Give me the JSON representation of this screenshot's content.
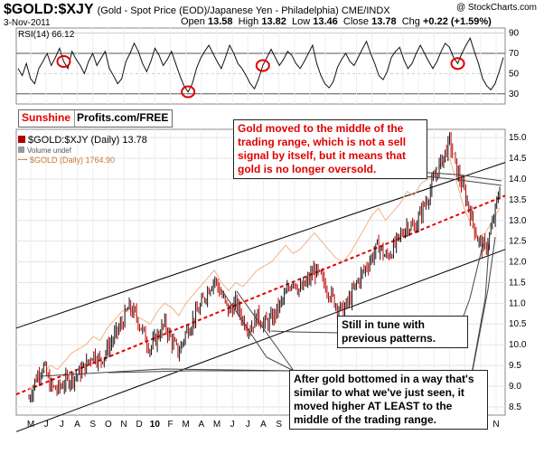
{
  "header": {
    "symbol": "$GOLD:$XJY",
    "subtitle": "(Gold - Spot Price (EOD)/Japanese Yen - Philadelphia) CME/INDX",
    "date": "3-Nov-2011",
    "copyright": "@ StockCharts.com",
    "ohlc": {
      "open_label": "Open",
      "open": "13.58",
      "high_label": "High",
      "high": "13.82",
      "low_label": "Low",
      "low": "13.46",
      "close_label": "Close",
      "close": "13.78",
      "chg_label": "Chg",
      "chg": "+0.22 (+1.59%)"
    }
  },
  "logo": {
    "part1": "Sunshine",
    "part2": "Profits.com/FREE"
  },
  "legend": {
    "price": "$GOLD:$XJY (Daily) 13.78",
    "volume": "Volume undef",
    "gold": "$GOLD (Daily) 1764.90"
  },
  "annotations": {
    "red": "Gold moved to the middle of the trading range, which is not a sell signal by itself, but it means that gold is no longer oversold.",
    "black1": "Still in tune with previous patterns.",
    "black2": "After gold bottomed in a way that's similar to what we've just seen, it moved higher AT LEAST to the middle of the trading range."
  },
  "chart_data": [
    {
      "type": "line",
      "title": "RSI(14) 66.12",
      "ylim": [
        20,
        95
      ],
      "y_ticks": [
        30,
        50,
        70,
        90
      ],
      "series": [
        {
          "name": "RSI(14)",
          "values": [
            55,
            48,
            60,
            45,
            40,
            55,
            62,
            70,
            58,
            66,
            75,
            62,
            55,
            72,
            64,
            58,
            50,
            62,
            70,
            58,
            65,
            72,
            55,
            48,
            40,
            45,
            62,
            70,
            80,
            72,
            60,
            52,
            62,
            75,
            68,
            58,
            64,
            72,
            60,
            48,
            38,
            32,
            40,
            55,
            65,
            72,
            78,
            70,
            62,
            55,
            66,
            78,
            70,
            60,
            55,
            48,
            40,
            35,
            45,
            58,
            66,
            74,
            66,
            58,
            64,
            72,
            68,
            60,
            55,
            62,
            70,
            78,
            60,
            48,
            40,
            36,
            42,
            56,
            64,
            70,
            62,
            58,
            66,
            74,
            82,
            70,
            60,
            48,
            44,
            52,
            66,
            72,
            76,
            64,
            55,
            60,
            70,
            78,
            70,
            62,
            55,
            62,
            72,
            80,
            76,
            66,
            60,
            70,
            78,
            85,
            72,
            60,
            45,
            38,
            34,
            40,
            52,
            66
          ]
        }
      ],
      "highlight_circles_at_index": [
        11,
        41,
        59,
        106
      ]
    },
    {
      "type": "line",
      "title": "$GOLD:$XJY (Daily) 13.78",
      "x_ticks": [
        "M",
        "J",
        "J",
        "A",
        "S",
        "O",
        "N",
        "D",
        "10",
        "F",
        "M",
        "A",
        "M",
        "J",
        "J",
        "A",
        "S",
        "O",
        "N",
        "D",
        "11",
        "F",
        "M",
        "A",
        "M",
        "J",
        "J",
        "A",
        "S",
        "O",
        "N"
      ],
      "ylim": [
        8.3,
        15.2
      ],
      "y_ticks": [
        8.5,
        9.0,
        9.5,
        10.0,
        10.5,
        11.0,
        11.5,
        12.0,
        12.5,
        13.0,
        13.5,
        14.0,
        14.5,
        15.0
      ],
      "series": [
        {
          "name": "$GOLD:$XJY",
          "values": [
            8.7,
            9.2,
            9.5,
            9.0,
            8.9,
            9.1,
            9.2,
            9.3,
            9.5,
            9.8,
            9.6,
            9.9,
            10.2,
            10.5,
            10.9,
            10.7,
            10.3,
            9.9,
            10.2,
            10.5,
            10.1,
            9.8,
            10.3,
            10.6,
            10.9,
            11.3,
            11.6,
            11.2,
            10.8,
            11.0,
            10.6,
            10.4,
            10.7,
            10.5,
            10.6,
            10.9,
            11.2,
            11.6,
            11.3,
            11.5,
            11.8,
            11.6,
            11.3,
            11.0,
            10.8,
            11.1,
            11.5,
            11.8,
            12.1,
            12.4,
            12.1,
            12.3,
            12.6,
            12.9,
            12.8,
            13.2,
            13.6,
            14.1,
            14.5,
            14.9,
            14.2,
            13.7,
            13.1,
            12.5,
            12.3,
            12.9,
            13.78
          ]
        },
        {
          "name": "$GOLD",
          "values": [
            8.9,
            9.1,
            9.3,
            9.5,
            9.4,
            9.6,
            9.8,
            9.9,
            10.0,
            10.2,
            10.1,
            10.4,
            10.6,
            10.8,
            10.9,
            10.7,
            10.6,
            10.5,
            10.8,
            11.0,
            10.9,
            10.7,
            11.0,
            11.2,
            11.4,
            11.6,
            11.8,
            11.5,
            11.3,
            11.5,
            11.4,
            11.6,
            11.8,
            11.9,
            12.0,
            12.2,
            12.4,
            12.2,
            12.3,
            12.5,
            12.7,
            12.5,
            12.3,
            12.1,
            12.0,
            12.2,
            12.5,
            12.8,
            13.1,
            13.3,
            13.0,
            13.2,
            13.4,
            13.7,
            13.6,
            13.9,
            14.0,
            14.2,
            14.4,
            14.5,
            13.9,
            13.3,
            12.9,
            12.6,
            12.7,
            13.0,
            13.3
          ]
        }
      ],
      "trend_lines": {
        "upper_channel": {
          "start": 10.4,
          "end": 14.4
        },
        "lower_channel": {
          "start": 7.9,
          "end": 12.3
        },
        "middle_dashed": {
          "start": 8.8,
          "end": 13.6
        }
      }
    }
  ]
}
